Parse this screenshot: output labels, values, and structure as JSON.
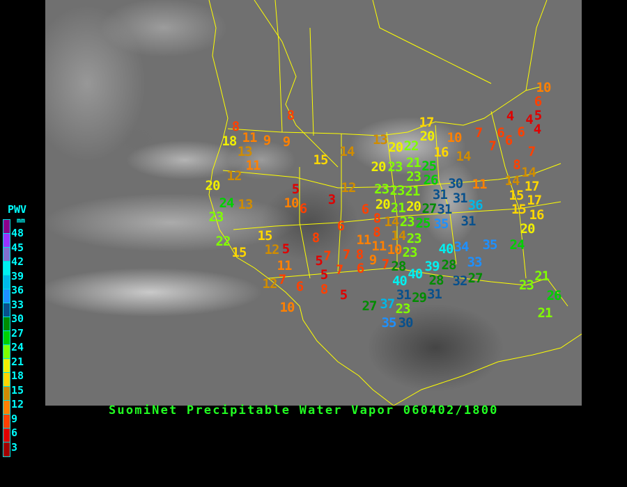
{
  "title": "SuomiNet Precipitable Water Vapor 060402/1800",
  "legend": {
    "title": "PWV",
    "unit": "mm",
    "labels": [
      "48",
      "45",
      "42",
      "39",
      "36",
      "33",
      "30",
      "27",
      "24",
      "21",
      "18",
      "15",
      "12",
      "9",
      "6",
      "3"
    ],
    "colors": [
      "#8b008b",
      "#9933ff",
      "#8070d0",
      "#00f0f0",
      "#00b8e8",
      "#1e90ff",
      "#08508c",
      "#008c00",
      "#00d000",
      "#80ff00",
      "#f0f000",
      "#ffd700",
      "#d08c00",
      "#ff8000",
      "#ff4000",
      "#e00000",
      "#a00000"
    ]
  },
  "map": {
    "background": "infrared satellite imagery",
    "border_color": "#ffff00"
  },
  "stations": [
    8,
    18,
    11,
    9,
    13,
    9,
    8,
    11,
    12,
    20,
    24,
    13,
    23,
    22,
    15,
    15,
    12,
    5,
    11,
    7,
    12,
    6,
    10,
    5,
    10,
    6,
    3,
    15,
    14,
    12,
    6,
    6,
    8,
    7,
    5,
    7,
    7,
    5,
    8,
    5,
    8,
    6,
    9,
    7,
    11,
    11,
    10,
    8,
    8,
    14,
    13,
    20,
    22,
    17,
    20,
    10,
    7,
    16,
    14,
    10,
    6,
    5,
    4,
    4,
    6,
    6,
    6,
    4,
    7,
    7,
    8,
    14,
    14,
    15,
    17,
    15,
    17,
    16,
    20,
    11,
    30,
    31,
    31,
    36,
    27,
    31,
    31,
    35,
    20,
    23,
    21,
    25,
    26,
    23,
    23,
    23,
    21,
    20,
    20,
    21,
    23,
    25,
    14,
    23,
    23,
    40,
    34,
    33,
    35,
    24,
    28,
    40,
    40,
    31,
    39,
    28,
    28,
    31,
    32,
    27,
    29,
    27,
    37,
    23,
    35,
    30,
    21,
    23,
    26,
    21
  ]
}
